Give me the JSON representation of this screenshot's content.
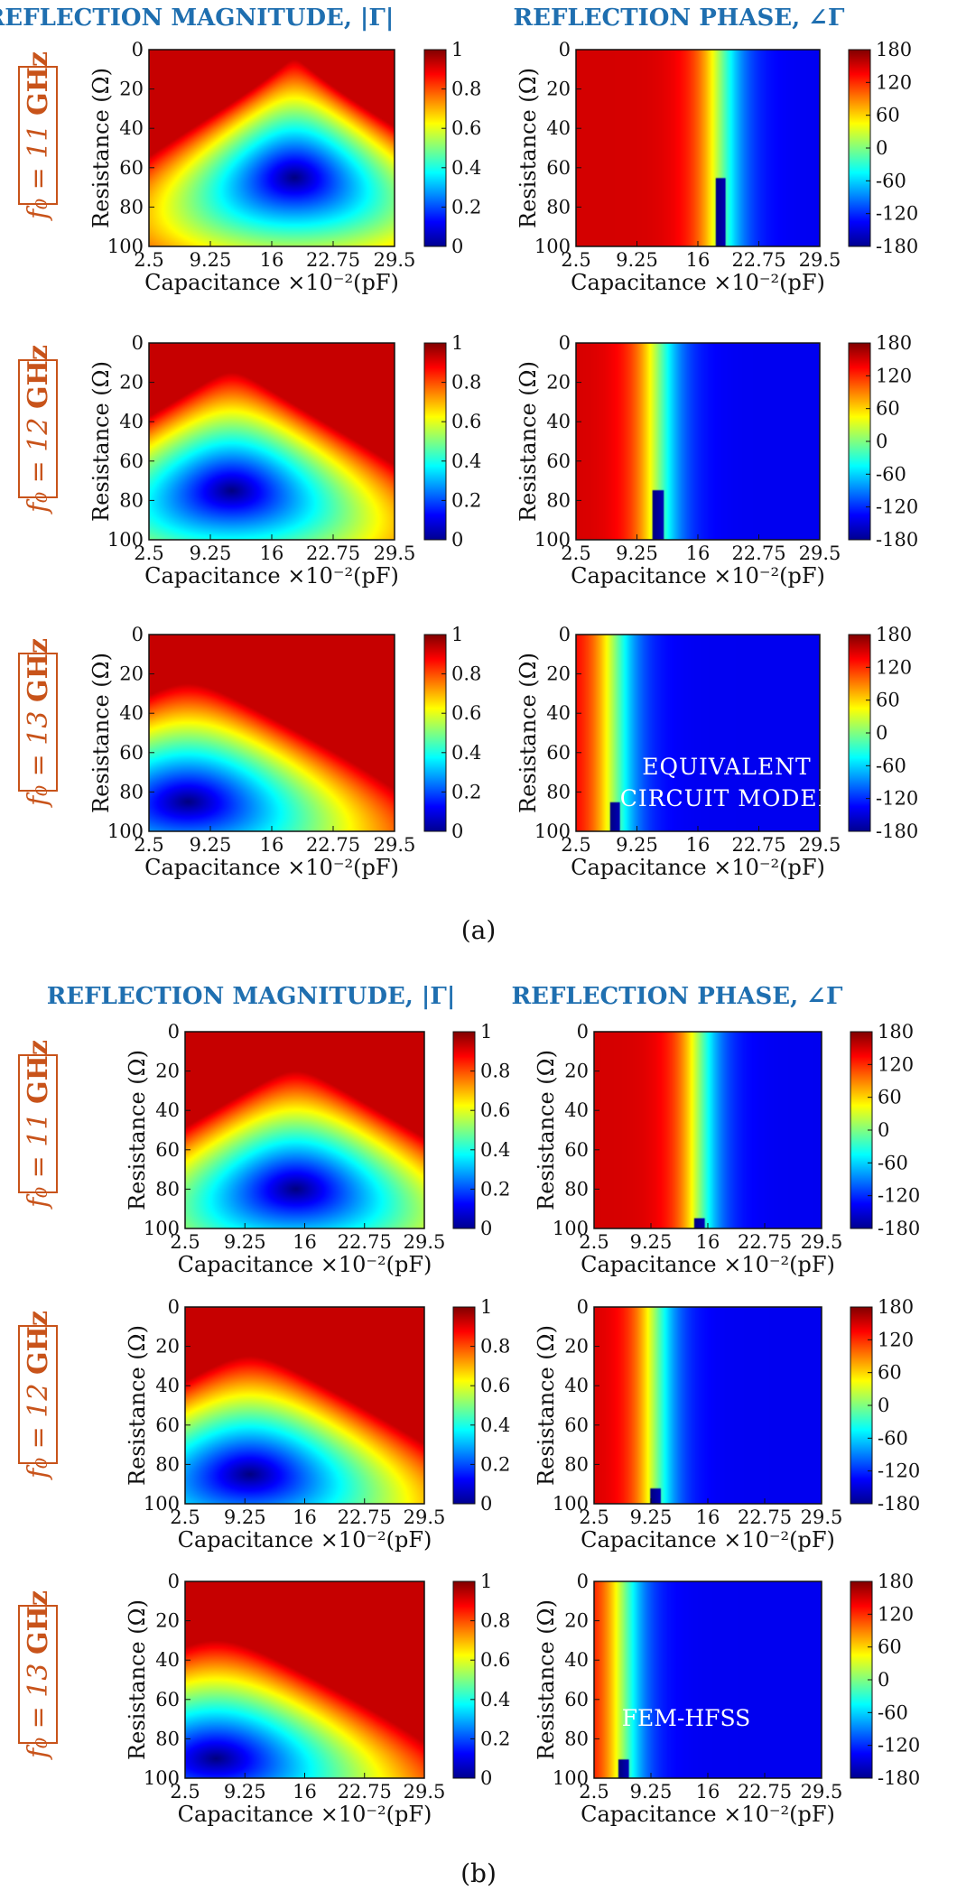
{
  "figure": {
    "section_a": {
      "caption": "(a)",
      "title_left": "REFLECTION MAGNITUDE, |Γ|",
      "title_right": "REFLECTION PHASE, ∠Γ",
      "annotation": [
        "EQUIVALENT",
        "CIRCUIT MODEL"
      ],
      "rows": [
        {
          "label_prefix": "f₀ = 11 ",
          "label_unit": "GHz"
        },
        {
          "label_prefix": "f₀ = 12 ",
          "label_unit": "GHz"
        },
        {
          "label_prefix": "f₀ = 13 ",
          "label_unit": "GHz"
        }
      ]
    },
    "section_b": {
      "caption": "(b)",
      "title_left": "REFLECTION MAGNITUDE, |Γ|",
      "title_right": "REFLECTION PHASE, ∠Γ",
      "annotation": [
        "FEM-HFSS"
      ],
      "rows": [
        {
          "label_prefix": "f₀ = 11 ",
          "label_unit": "GHz"
        },
        {
          "label_prefix": "f₀ = 12 ",
          "label_unit": "GHz"
        },
        {
          "label_prefix": "f₀ = 13 ",
          "label_unit": "GHz"
        }
      ]
    },
    "axes": {
      "xlabel": "Capacitance ×10⁻²(pF)",
      "ylabel": "Resistance (Ω)",
      "x_ticks": [
        "2.5",
        "9.25",
        "16",
        "22.75",
        "29.5"
      ],
      "y_ticks": [
        "0",
        "20",
        "40",
        "60",
        "80",
        "100"
      ],
      "mag_colorbar_ticks": [
        "0",
        "0.2",
        "0.4",
        "0.6",
        "0.8",
        "1"
      ],
      "phase_colorbar_ticks": [
        "-180",
        "-120",
        "-60",
        "0",
        "60",
        "120",
        "180"
      ]
    }
  },
  "chart_data": [
    {
      "type": "heatmap",
      "section": "a",
      "row": "f0 = 11 GHz",
      "quantity": "Reflection magnitude |Γ|",
      "xlabel": "Capacitance ×10⁻²(pF)",
      "ylabel": "Resistance (Ω)",
      "xlim": [
        2.5,
        29.5
      ],
      "ylim": [
        0,
        100
      ],
      "clim": [
        0,
        1
      ],
      "colormap": "jet",
      "min_location": {
        "x": 18.5,
        "y": 65
      },
      "min_value": 0.0
    },
    {
      "type": "heatmap",
      "section": "a",
      "row": "f0 = 11 GHz",
      "quantity": "Reflection phase ∠Γ",
      "xlabel": "Capacitance ×10⁻²(pF)",
      "ylabel": "Resistance (Ω)",
      "xlim": [
        2.5,
        29.5
      ],
      "ylim": [
        0,
        100
      ],
      "clim": [
        -180,
        180
      ],
      "colormap": "jet",
      "branch_point": {
        "x": 18.5,
        "y": 65
      }
    },
    {
      "type": "heatmap",
      "section": "a",
      "row": "f0 = 12 GHz",
      "quantity": "Reflection magnitude |Γ|",
      "xlabel": "Capacitance ×10⁻²(pF)",
      "ylabel": "Resistance (Ω)",
      "xlim": [
        2.5,
        29.5
      ],
      "ylim": [
        0,
        100
      ],
      "clim": [
        0,
        1
      ],
      "colormap": "jet",
      "min_location": {
        "x": 11.6,
        "y": 75
      },
      "min_value": 0.0
    },
    {
      "type": "heatmap",
      "section": "a",
      "row": "f0 = 12 GHz",
      "quantity": "Reflection phase ∠Γ",
      "xlabel": "Capacitance ×10⁻²(pF)",
      "ylabel": "Resistance (Ω)",
      "xlim": [
        2.5,
        29.5
      ],
      "ylim": [
        0,
        100
      ],
      "clim": [
        -180,
        180
      ],
      "colormap": "jet",
      "branch_point": {
        "x": 11.6,
        "y": 75
      }
    },
    {
      "type": "heatmap",
      "section": "a",
      "row": "f0 = 13 GHz",
      "quantity": "Reflection magnitude |Γ|",
      "xlabel": "Capacitance ×10⁻²(pF)",
      "ylabel": "Resistance (Ω)",
      "xlim": [
        2.5,
        29.5
      ],
      "ylim": [
        0,
        100
      ],
      "clim": [
        0,
        1
      ],
      "colormap": "jet",
      "min_location": {
        "x": 6.8,
        "y": 85
      },
      "min_value": 0.0
    },
    {
      "type": "heatmap",
      "section": "a",
      "row": "f0 = 13 GHz",
      "quantity": "Reflection phase ∠Γ",
      "xlabel": "Capacitance ×10⁻²(pF)",
      "ylabel": "Resistance (Ω)",
      "xlim": [
        2.5,
        29.5
      ],
      "ylim": [
        0,
        100
      ],
      "clim": [
        -180,
        180
      ],
      "colormap": "jet",
      "branch_point": {
        "x": 6.8,
        "y": 85
      }
    },
    {
      "type": "heatmap",
      "section": "b",
      "row": "f0 = 11 GHz",
      "quantity": "Reflection magnitude |Γ|",
      "xlabel": "Capacitance ×10⁻²(pF)",
      "ylabel": "Resistance (Ω)",
      "xlim": [
        2.5,
        29.5
      ],
      "ylim": [
        0,
        100
      ],
      "clim": [
        0,
        1
      ],
      "colormap": "jet",
      "min_location": {
        "x": 15.0,
        "y": 80
      },
      "min_value": 0.0
    },
    {
      "type": "heatmap",
      "section": "b",
      "row": "f0 = 11 GHz",
      "quantity": "Reflection phase ∠Γ",
      "xlabel": "Capacitance ×10⁻²(pF)",
      "ylabel": "Resistance (Ω)",
      "xlim": [
        2.5,
        29.5
      ],
      "ylim": [
        0,
        100
      ],
      "clim": [
        -180,
        180
      ],
      "colormap": "jet",
      "branch_point": {
        "x": 15.0,
        "y": 95
      }
    },
    {
      "type": "heatmap",
      "section": "b",
      "row": "f0 = 12 GHz",
      "quantity": "Reflection magnitude |Γ|",
      "xlabel": "Capacitance ×10⁻²(pF)",
      "ylabel": "Resistance (Ω)",
      "xlim": [
        2.5,
        29.5
      ],
      "ylim": [
        0,
        100
      ],
      "clim": [
        0,
        1
      ],
      "colormap": "jet",
      "min_location": {
        "x": 9.8,
        "y": 85
      },
      "min_value": 0.0
    },
    {
      "type": "heatmap",
      "section": "b",
      "row": "f0 = 12 GHz",
      "quantity": "Reflection phase ∠Γ",
      "xlabel": "Capacitance ×10⁻²(pF)",
      "ylabel": "Resistance (Ω)",
      "xlim": [
        2.5,
        29.5
      ],
      "ylim": [
        0,
        100
      ],
      "clim": [
        -180,
        180
      ],
      "colormap": "jet",
      "branch_point": {
        "x": 9.8,
        "y": 92
      }
    },
    {
      "type": "heatmap",
      "section": "b",
      "row": "f0 = 13 GHz",
      "quantity": "Reflection magnitude |Γ|",
      "xlabel": "Capacitance ×10⁻²(pF)",
      "ylabel": "Resistance (Ω)",
      "xlim": [
        2.5,
        29.5
      ],
      "ylim": [
        0,
        100
      ],
      "clim": [
        0,
        1
      ],
      "colormap": "jet",
      "min_location": {
        "x": 6.0,
        "y": 90
      },
      "min_value": 0.0
    },
    {
      "type": "heatmap",
      "section": "b",
      "row": "f0 = 13 GHz",
      "quantity": "Reflection phase ∠Γ",
      "xlabel": "Capacitance ×10⁻²(pF)",
      "ylabel": "Resistance (Ω)",
      "xlim": [
        2.5,
        29.5
      ],
      "ylim": [
        0,
        100
      ],
      "clim": [
        -180,
        180
      ],
      "colormap": "jet",
      "branch_point": {
        "x": 6.0,
        "y": 90
      }
    }
  ]
}
